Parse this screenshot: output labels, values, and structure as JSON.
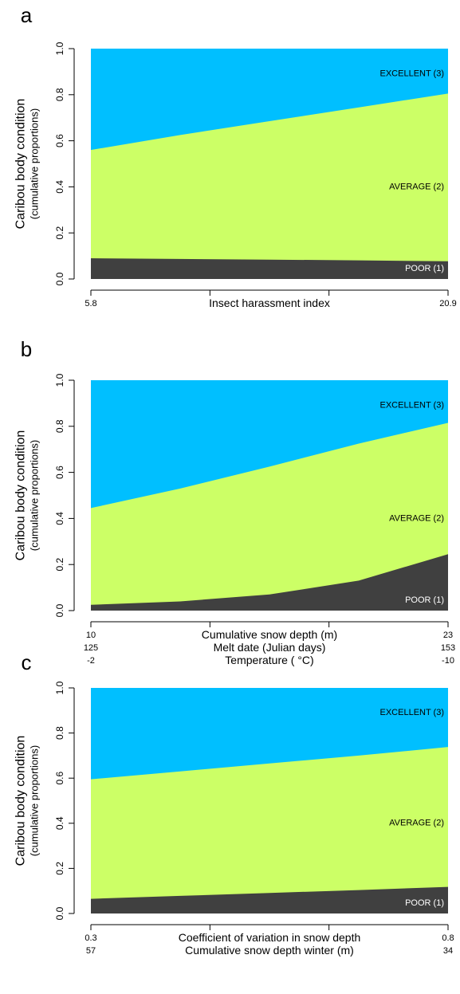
{
  "colors": {
    "excellent": "#00BFFF",
    "average": "#CCFF66",
    "poor": "#404040",
    "axis": "#000000",
    "poor_label": "#ffffff"
  },
  "chart_data": [
    {
      "type": "area",
      "panel_label": "a",
      "ylabel": "Caribou body condition",
      "ylabel_sub": "(cumulative proportions)",
      "ylim": [
        0,
        1
      ],
      "yticks": [
        "0.0",
        "0.2",
        "0.4",
        "0.6",
        "0.8",
        "1.0"
      ],
      "x_label_rows": [
        {
          "left": "5.8",
          "center": "Insect harassment index",
          "right": "20.9"
        }
      ],
      "x": [
        0,
        0.25,
        0.5,
        0.75,
        1
      ],
      "series": [
        {
          "name": "POOR (1)",
          "values": [
            0.09,
            0.087,
            0.084,
            0.081,
            0.077
          ]
        },
        {
          "name": "AVERAGE (2)",
          "values": [
            0.56,
            0.625,
            0.685,
            0.745,
            0.805
          ]
        },
        {
          "name": "EXCELLENT (3)",
          "values": [
            1,
            1,
            1,
            1,
            1
          ]
        }
      ]
    },
    {
      "type": "area",
      "panel_label": "b",
      "ylabel": "Caribou body condition",
      "ylabel_sub": "(cumulative proportions)",
      "ylim": [
        0,
        1
      ],
      "yticks": [
        "0.0",
        "0.2",
        "0.4",
        "0.6",
        "0.8",
        "1.0"
      ],
      "x_label_rows": [
        {
          "left": "10",
          "center": "Cumulative snow depth (m)",
          "right": "23"
        },
        {
          "left": "125",
          "center": "Melt date (Julian days)",
          "right": "153"
        },
        {
          "left": "-2",
          "center": "Temperature ( °C)",
          "right": "-10"
        }
      ],
      "x": [
        0,
        0.25,
        0.5,
        0.75,
        1
      ],
      "series": [
        {
          "name": "POOR (1)",
          "values": [
            0.025,
            0.04,
            0.07,
            0.13,
            0.245
          ]
        },
        {
          "name": "AVERAGE (2)",
          "values": [
            0.445,
            0.53,
            0.625,
            0.725,
            0.815
          ]
        },
        {
          "name": "EXCELLENT (3)",
          "values": [
            1,
            1,
            1,
            1,
            1
          ]
        }
      ]
    },
    {
      "type": "area",
      "panel_label": "c",
      "ylabel": "Caribou body condition",
      "ylabel_sub": "(cumulative proportions)",
      "ylim": [
        0,
        1
      ],
      "yticks": [
        "0.0",
        "0.2",
        "0.4",
        "0.6",
        "0.8",
        "1.0"
      ],
      "x_label_rows": [
        {
          "left": "0.3",
          "center": "Coefficient of variation in snow depth",
          "right": "0.8"
        },
        {
          "left": "57",
          "center": "Cumulative snow depth winter (m)",
          "right": "34"
        }
      ],
      "x": [
        0,
        0.25,
        0.5,
        0.75,
        1
      ],
      "series": [
        {
          "name": "POOR (1)",
          "values": [
            0.065,
            0.078,
            0.091,
            0.104,
            0.118
          ]
        },
        {
          "name": "AVERAGE (2)",
          "values": [
            0.595,
            0.63,
            0.665,
            0.7,
            0.738
          ]
        },
        {
          "name": "EXCELLENT (3)",
          "values": [
            1,
            1,
            1,
            1,
            1
          ]
        }
      ]
    }
  ]
}
